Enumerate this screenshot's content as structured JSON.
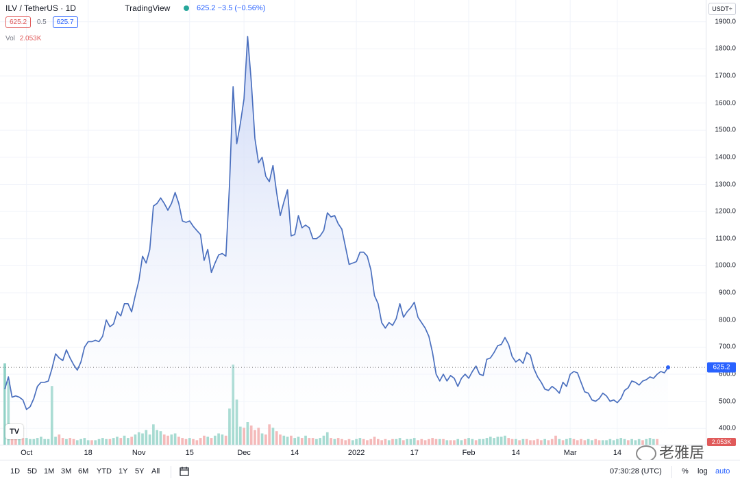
{
  "header": {
    "symbol": "ILV / TetherUS · 1D",
    "brand": "TradingView",
    "quote": "625.2 −3.5 (−0.56%)",
    "bid": "625.2",
    "spread": "0.5",
    "ask": "625.7",
    "vol_label": "Vol",
    "vol_value": "2.053K",
    "currency": "USDT÷"
  },
  "last_price_label": "625.2",
  "vol_tag_label": "2.053K",
  "logo_text": "TV",
  "watermark_text": "老雅居",
  "toolbar": {
    "ranges": [
      "1D",
      "5D",
      "1M",
      "3M",
      "6M",
      "YTD",
      "1Y",
      "5Y",
      "All"
    ],
    "clock": "07:30:28 (UTC)",
    "pct_label": "%",
    "log_label": "log",
    "auto_label": "auto"
  },
  "colors": {
    "line": "#4a6fbe",
    "area_top": "#c8d4f5",
    "up_volume": "#8fd1c5",
    "down_volume": "#f2a7a7",
    "last_price": "#2962ff"
  },
  "chart_data": {
    "type": "area",
    "title": "ILV / TetherUS · 1D",
    "xlabel": "",
    "ylabel": "",
    "ylim": [
      340,
      1980
    ],
    "y_ticks": [
      400,
      500,
      600,
      700,
      800,
      900,
      1000,
      1100,
      1200,
      1300,
      1400,
      1500,
      1600,
      1700,
      1800,
      1900
    ],
    "y_tick_labels": [
      "400.0",
      "500.0",
      "600.0",
      "700.0",
      "800.0",
      "900.0",
      "1000.0",
      "1100.0",
      "1200.0",
      "1300.0",
      "1400.0",
      "1500.0",
      "1600.0",
      "1700.0",
      "1800.0",
      "1900.0"
    ],
    "x_tick_labels": [
      {
        "label": "Oct",
        "index": 6
      },
      {
        "label": "18",
        "index": 23
      },
      {
        "label": "Nov",
        "index": 37
      },
      {
        "label": "15",
        "index": 51
      },
      {
        "label": "Dec",
        "index": 66
      },
      {
        "label": "14",
        "index": 80
      },
      {
        "label": "2022",
        "index": 97
      },
      {
        "label": "17",
        "index": 113
      },
      {
        "label": "Feb",
        "index": 128
      },
      {
        "label": "14",
        "index": 141
      },
      {
        "label": "Mar",
        "index": 156
      },
      {
        "label": "14",
        "index": 169
      }
    ],
    "last_price": 625.2,
    "grid": true,
    "series": [
      {
        "values": [
          545,
          590,
          515,
          520,
          515,
          505,
          470,
          480,
          510,
          555,
          570,
          570,
          575,
          620,
          675,
          660,
          650,
          690,
          660,
          635,
          615,
          645,
          700,
          720,
          720,
          725,
          720,
          740,
          800,
          775,
          785,
          830,
          815,
          860,
          860,
          830,
          890,
          945,
          1035,
          1010,
          1060,
          1220,
          1230,
          1250,
          1230,
          1205,
          1230,
          1270,
          1230,
          1165,
          1160,
          1165,
          1145,
          1130,
          1115,
          1020,
          1060,
          975,
          1010,
          1040,
          1045,
          1035,
          1300,
          1660,
          1450,
          1525,
          1615,
          1845,
          1680,
          1470,
          1380,
          1400,
          1330,
          1310,
          1370,
          1270,
          1185,
          1235,
          1280,
          1110,
          1115,
          1185,
          1140,
          1150,
          1140,
          1100,
          1100,
          1110,
          1130,
          1195,
          1180,
          1185,
          1155,
          1135,
          1070,
          1005,
          1010,
          1015,
          1050,
          1050,
          1035,
          985,
          890,
          860,
          790,
          770,
          790,
          780,
          805,
          860,
          810,
          830,
          845,
          865,
          810,
          790,
          770,
          740,
          680,
          600,
          575,
          600,
          575,
          595,
          585,
          555,
          585,
          600,
          585,
          610,
          630,
          600,
          595,
          655,
          660,
          680,
          705,
          710,
          735,
          710,
          665,
          645,
          655,
          640,
          680,
          670,
          620,
          590,
          570,
          545,
          540,
          555,
          545,
          530,
          570,
          555,
          600,
          610,
          605,
          570,
          535,
          530,
          505,
          500,
          510,
          530,
          520,
          500,
          505,
          495,
          510,
          540,
          550,
          575,
          570,
          560,
          575,
          580,
          590,
          585,
          600,
          610,
          605,
          625
        ]
      }
    ],
    "volume": [
      {
        "v": 0.72,
        "up": 1
      },
      {
        "v": 0.56,
        "up": 1
      },
      {
        "v": 0.18,
        "up": 0
      },
      {
        "v": 0.07,
        "up": 0
      },
      {
        "v": 0.05,
        "up": 1
      },
      {
        "v": 0.06,
        "up": 0
      },
      {
        "v": 0.06,
        "up": 1
      },
      {
        "v": 0.05,
        "up": 1
      },
      {
        "v": 0.05,
        "up": 1
      },
      {
        "v": 0.06,
        "up": 1
      },
      {
        "v": 0.07,
        "up": 1
      },
      {
        "v": 0.05,
        "up": 1
      },
      {
        "v": 0.05,
        "up": 1
      },
      {
        "v": 0.52,
        "up": 1
      },
      {
        "v": 0.07,
        "up": 1
      },
      {
        "v": 0.09,
        "up": 0
      },
      {
        "v": 0.06,
        "up": 0
      },
      {
        "v": 0.05,
        "up": 1
      },
      {
        "v": 0.06,
        "up": 0
      },
      {
        "v": 0.05,
        "up": 0
      },
      {
        "v": 0.04,
        "up": 1
      },
      {
        "v": 0.05,
        "up": 1
      },
      {
        "v": 0.06,
        "up": 1
      },
      {
        "v": 0.04,
        "up": 1
      },
      {
        "v": 0.04,
        "up": 0
      },
      {
        "v": 0.04,
        "up": 1
      },
      {
        "v": 0.05,
        "up": 1
      },
      {
        "v": 0.06,
        "up": 1
      },
      {
        "v": 0.05,
        "up": 1
      },
      {
        "v": 0.05,
        "up": 0
      },
      {
        "v": 0.06,
        "up": 1
      },
      {
        "v": 0.07,
        "up": 1
      },
      {
        "v": 0.06,
        "up": 0
      },
      {
        "v": 0.08,
        "up": 1
      },
      {
        "v": 0.06,
        "up": 1
      },
      {
        "v": 0.07,
        "up": 0
      },
      {
        "v": 0.09,
        "up": 1
      },
      {
        "v": 0.11,
        "up": 1
      },
      {
        "v": 0.1,
        "up": 1
      },
      {
        "v": 0.13,
        "up": 1
      },
      {
        "v": 0.09,
        "up": 1
      },
      {
        "v": 0.18,
        "up": 1
      },
      {
        "v": 0.13,
        "up": 1
      },
      {
        "v": 0.12,
        "up": 1
      },
      {
        "v": 0.09,
        "up": 0
      },
      {
        "v": 0.08,
        "up": 0
      },
      {
        "v": 0.09,
        "up": 1
      },
      {
        "v": 0.1,
        "up": 1
      },
      {
        "v": 0.07,
        "up": 0
      },
      {
        "v": 0.06,
        "up": 0
      },
      {
        "v": 0.05,
        "up": 0
      },
      {
        "v": 0.06,
        "up": 1
      },
      {
        "v": 0.05,
        "up": 0
      },
      {
        "v": 0.04,
        "up": 0
      },
      {
        "v": 0.06,
        "up": 0
      },
      {
        "v": 0.08,
        "up": 0
      },
      {
        "v": 0.07,
        "up": 1
      },
      {
        "v": 0.06,
        "up": 0
      },
      {
        "v": 0.08,
        "up": 1
      },
      {
        "v": 0.1,
        "up": 1
      },
      {
        "v": 0.09,
        "up": 1
      },
      {
        "v": 0.08,
        "up": 0
      },
      {
        "v": 0.32,
        "up": 1
      },
      {
        "v": 0.71,
        "up": 1
      },
      {
        "v": 0.4,
        "up": 1
      },
      {
        "v": 0.16,
        "up": 1
      },
      {
        "v": 0.15,
        "up": 0
      },
      {
        "v": 0.2,
        "up": 1
      },
      {
        "v": 0.17,
        "up": 0
      },
      {
        "v": 0.13,
        "up": 0
      },
      {
        "v": 0.15,
        "up": 0
      },
      {
        "v": 0.1,
        "up": 1
      },
      {
        "v": 0.09,
        "up": 0
      },
      {
        "v": 0.18,
        "up": 0
      },
      {
        "v": 0.15,
        "up": 1
      },
      {
        "v": 0.12,
        "up": 0
      },
      {
        "v": 0.09,
        "up": 0
      },
      {
        "v": 0.08,
        "up": 1
      },
      {
        "v": 0.07,
        "up": 1
      },
      {
        "v": 0.08,
        "up": 0
      },
      {
        "v": 0.06,
        "up": 1
      },
      {
        "v": 0.07,
        "up": 1
      },
      {
        "v": 0.06,
        "up": 0
      },
      {
        "v": 0.08,
        "up": 1
      },
      {
        "v": 0.06,
        "up": 0
      },
      {
        "v": 0.06,
        "up": 0
      },
      {
        "v": 0.05,
        "up": 1
      },
      {
        "v": 0.06,
        "up": 1
      },
      {
        "v": 0.08,
        "up": 1
      },
      {
        "v": 0.11,
        "up": 1
      },
      {
        "v": 0.06,
        "up": 0
      },
      {
        "v": 0.05,
        "up": 1
      },
      {
        "v": 0.06,
        "up": 0
      },
      {
        "v": 0.05,
        "up": 0
      },
      {
        "v": 0.04,
        "up": 0
      },
      {
        "v": 0.05,
        "up": 0
      },
      {
        "v": 0.04,
        "up": 1
      },
      {
        "v": 0.05,
        "up": 1
      },
      {
        "v": 0.06,
        "up": 1
      },
      {
        "v": 0.05,
        "up": 0
      },
      {
        "v": 0.04,
        "up": 0
      },
      {
        "v": 0.05,
        "up": 0
      },
      {
        "v": 0.07,
        "up": 0
      },
      {
        "v": 0.05,
        "up": 0
      },
      {
        "v": 0.04,
        "up": 0
      },
      {
        "v": 0.05,
        "up": 0
      },
      {
        "v": 0.04,
        "up": 1
      },
      {
        "v": 0.05,
        "up": 0
      },
      {
        "v": 0.05,
        "up": 1
      },
      {
        "v": 0.06,
        "up": 1
      },
      {
        "v": 0.04,
        "up": 0
      },
      {
        "v": 0.05,
        "up": 1
      },
      {
        "v": 0.05,
        "up": 1
      },
      {
        "v": 0.06,
        "up": 1
      },
      {
        "v": 0.04,
        "up": 0
      },
      {
        "v": 0.05,
        "up": 0
      },
      {
        "v": 0.04,
        "up": 0
      },
      {
        "v": 0.05,
        "up": 0
      },
      {
        "v": 0.06,
        "up": 0
      },
      {
        "v": 0.05,
        "up": 0
      },
      {
        "v": 0.05,
        "up": 1
      },
      {
        "v": 0.05,
        "up": 0
      },
      {
        "v": 0.04,
        "up": 1
      },
      {
        "v": 0.04,
        "up": 0
      },
      {
        "v": 0.04,
        "up": 0
      },
      {
        "v": 0.05,
        "up": 1
      },
      {
        "v": 0.04,
        "up": 1
      },
      {
        "v": 0.05,
        "up": 0
      },
      {
        "v": 0.06,
        "up": 1
      },
      {
        "v": 0.05,
        "up": 1
      },
      {
        "v": 0.04,
        "up": 0
      },
      {
        "v": 0.05,
        "up": 1
      },
      {
        "v": 0.05,
        "up": 1
      },
      {
        "v": 0.06,
        "up": 1
      },
      {
        "v": 0.07,
        "up": 1
      },
      {
        "v": 0.06,
        "up": 1
      },
      {
        "v": 0.07,
        "up": 1
      },
      {
        "v": 0.07,
        "up": 1
      },
      {
        "v": 0.08,
        "up": 1
      },
      {
        "v": 0.06,
        "up": 0
      },
      {
        "v": 0.05,
        "up": 0
      },
      {
        "v": 0.05,
        "up": 1
      },
      {
        "v": 0.04,
        "up": 0
      },
      {
        "v": 0.05,
        "up": 1
      },
      {
        "v": 0.05,
        "up": 0
      },
      {
        "v": 0.04,
        "up": 0
      },
      {
        "v": 0.04,
        "up": 0
      },
      {
        "v": 0.05,
        "up": 0
      },
      {
        "v": 0.04,
        "up": 0
      },
      {
        "v": 0.05,
        "up": 1
      },
      {
        "v": 0.04,
        "up": 0
      },
      {
        "v": 0.05,
        "up": 0
      },
      {
        "v": 0.08,
        "up": 0
      },
      {
        "v": 0.05,
        "up": 1
      },
      {
        "v": 0.04,
        "up": 0
      },
      {
        "v": 0.05,
        "up": 1
      },
      {
        "v": 0.06,
        "up": 1
      },
      {
        "v": 0.05,
        "up": 0
      },
      {
        "v": 0.04,
        "up": 0
      },
      {
        "v": 0.05,
        "up": 0
      },
      {
        "v": 0.04,
        "up": 0
      },
      {
        "v": 0.05,
        "up": 1
      },
      {
        "v": 0.04,
        "up": 1
      },
      {
        "v": 0.05,
        "up": 0
      },
      {
        "v": 0.04,
        "up": 0
      },
      {
        "v": 0.04,
        "up": 1
      },
      {
        "v": 0.04,
        "up": 1
      },
      {
        "v": 0.05,
        "up": 1
      },
      {
        "v": 0.04,
        "up": 1
      },
      {
        "v": 0.05,
        "up": 1
      },
      {
        "v": 0.06,
        "up": 1
      },
      {
        "v": 0.05,
        "up": 1
      },
      {
        "v": 0.04,
        "up": 0
      },
      {
        "v": 0.05,
        "up": 1
      },
      {
        "v": 0.04,
        "up": 1
      },
      {
        "v": 0.05,
        "up": 1
      },
      {
        "v": 0.04,
        "up": 0
      },
      {
        "v": 0.05,
        "up": 1
      },
      {
        "v": 0.06,
        "up": 1
      },
      {
        "v": 0.05,
        "up": 1
      },
      {
        "v": 0.05,
        "up": 0
      }
    ]
  }
}
